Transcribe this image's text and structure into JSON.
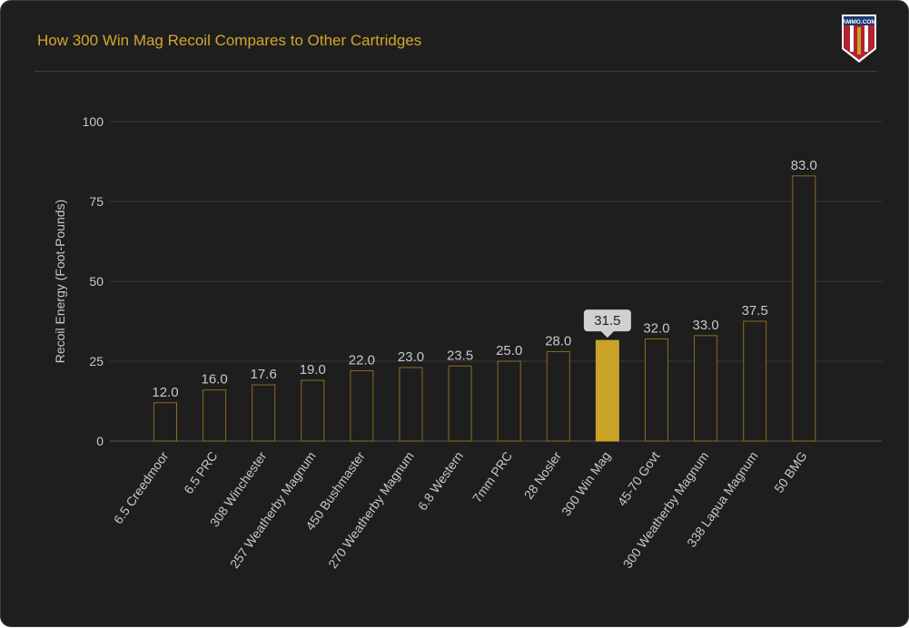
{
  "header": {
    "title": "How 300 Win Mag Recoil Compares to Other Cartridges",
    "logo_text": "AMMO.COM"
  },
  "colors": {
    "accent": "#c9a227",
    "outline": "#8a6d1c",
    "grid": "#3a3a3a",
    "text": "#c8c8c8",
    "tooltip_bg": "#d0d0d0"
  },
  "chart_data": {
    "type": "bar",
    "title": "How 300 Win Mag Recoil Compares to Other Cartridges",
    "xlabel": "",
    "ylabel": "Recoil Energy (Foot-Pounds)",
    "ylim": [
      0,
      100
    ],
    "yticks": [
      0,
      25,
      50,
      75,
      100
    ],
    "grid": true,
    "categories": [
      "6.5 Creedmoor",
      "6.5 PRC",
      "308 Winchester",
      "257 Weatherby Magnum",
      "450 Bushmaster",
      "270 Weatherby Magnum",
      "6.8 Western",
      "7mm PRC",
      "28 Nosler",
      "300 Win Mag",
      "45-70 Govt",
      "300 Weatherby Magnum",
      "338 Lapua Magnum",
      "50 BMG"
    ],
    "values": [
      12.0,
      16.0,
      17.6,
      19.0,
      22.0,
      23.0,
      23.5,
      25.0,
      28.0,
      31.5,
      32.0,
      33.0,
      37.5,
      83.0
    ],
    "highlighted": "300 Win Mag"
  }
}
